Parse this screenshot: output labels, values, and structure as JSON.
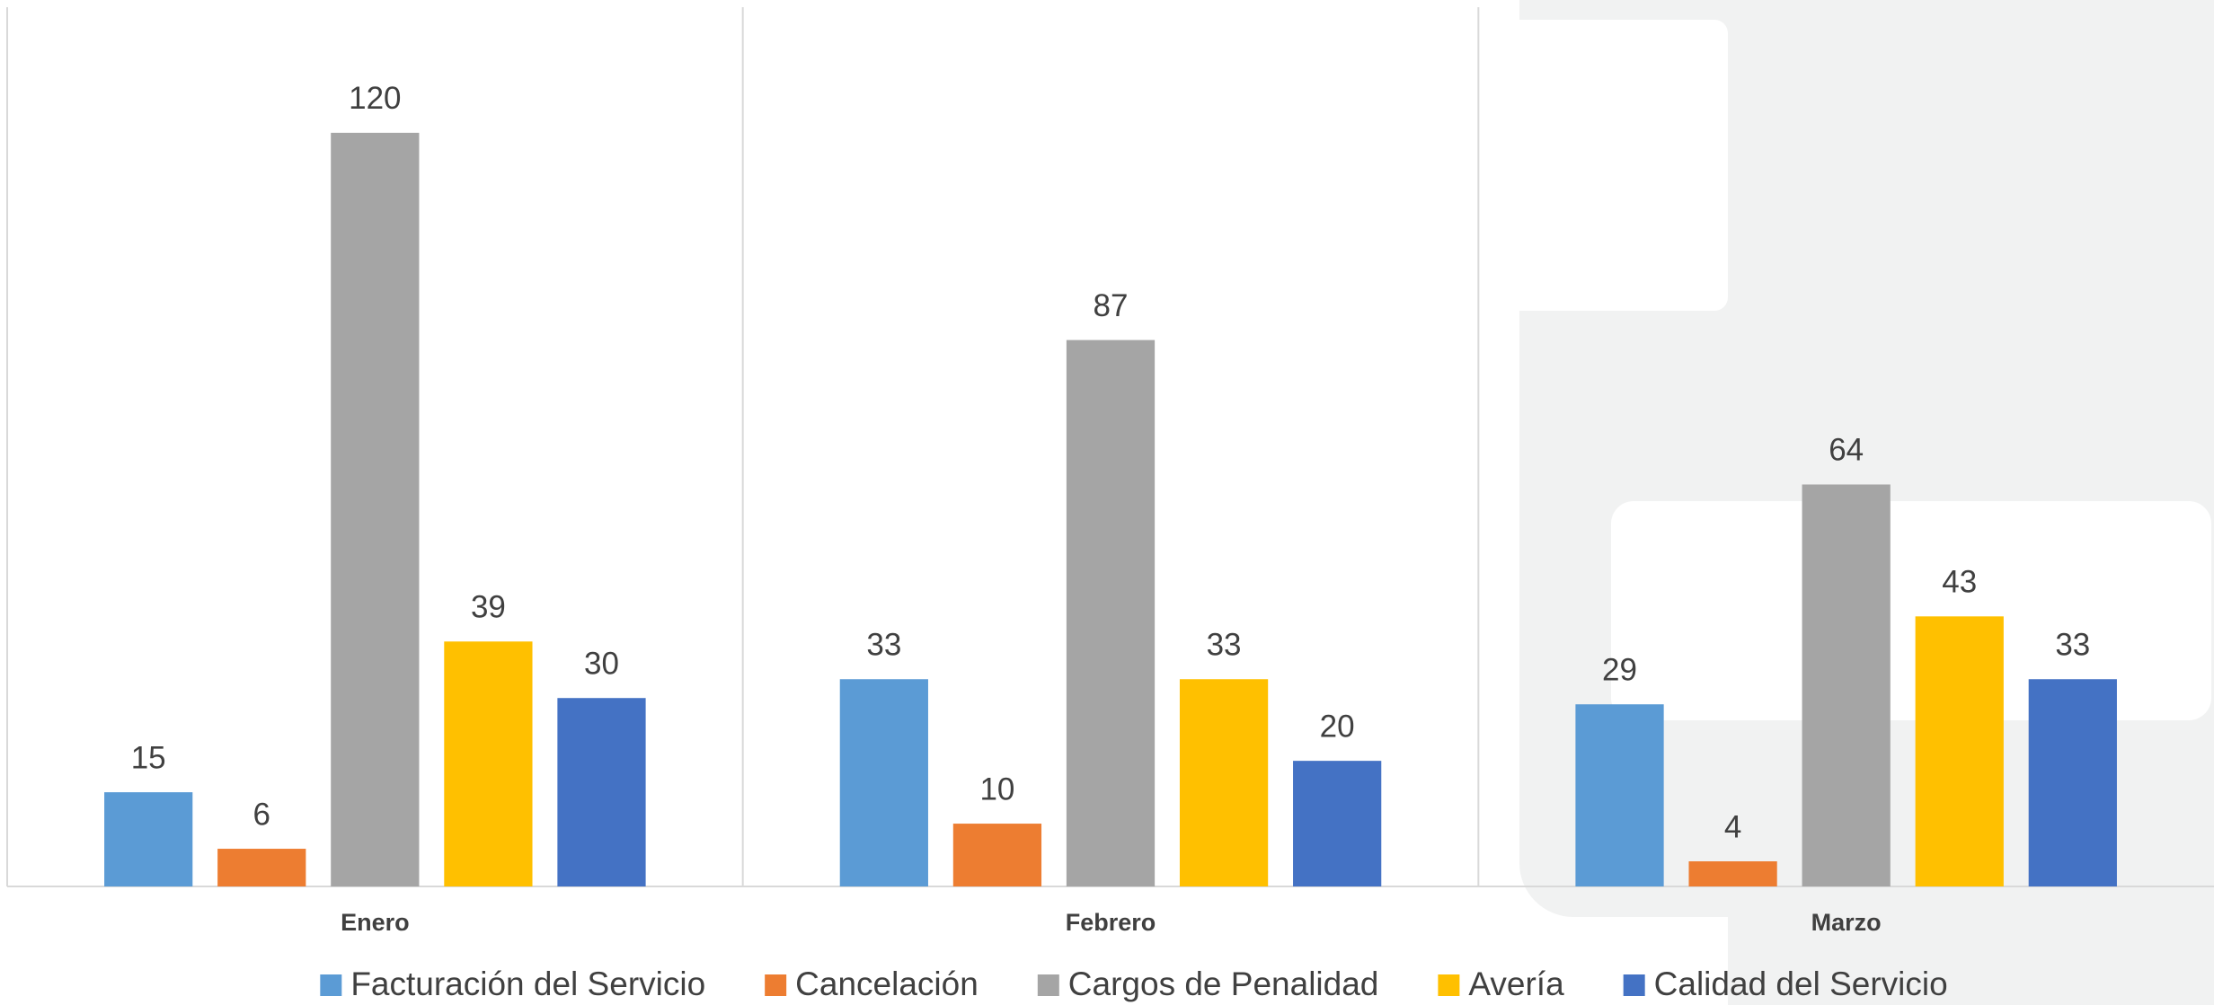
{
  "chart_data": {
    "type": "bar",
    "categories": [
      "Enero",
      "Febrero",
      "Marzo"
    ],
    "series": [
      {
        "name": "Facturación del Servicio",
        "color": "#5b9bd5",
        "values": [
          15,
          33,
          29
        ]
      },
      {
        "name": "Cancelación",
        "color": "#ed7d31",
        "values": [
          6,
          10,
          4
        ]
      },
      {
        "name": "Cargos de Penalidad",
        "color": "#a5a5a5",
        "values": [
          120,
          87,
          64
        ]
      },
      {
        "name": "Avería",
        "color": "#ffc000",
        "values": [
          39,
          33,
          43
        ]
      },
      {
        "name": "Calidad del Servicio",
        "color": "#4472c4",
        "values": [
          30,
          20,
          33
        ]
      }
    ],
    "ylim": [
      0,
      140
    ]
  }
}
